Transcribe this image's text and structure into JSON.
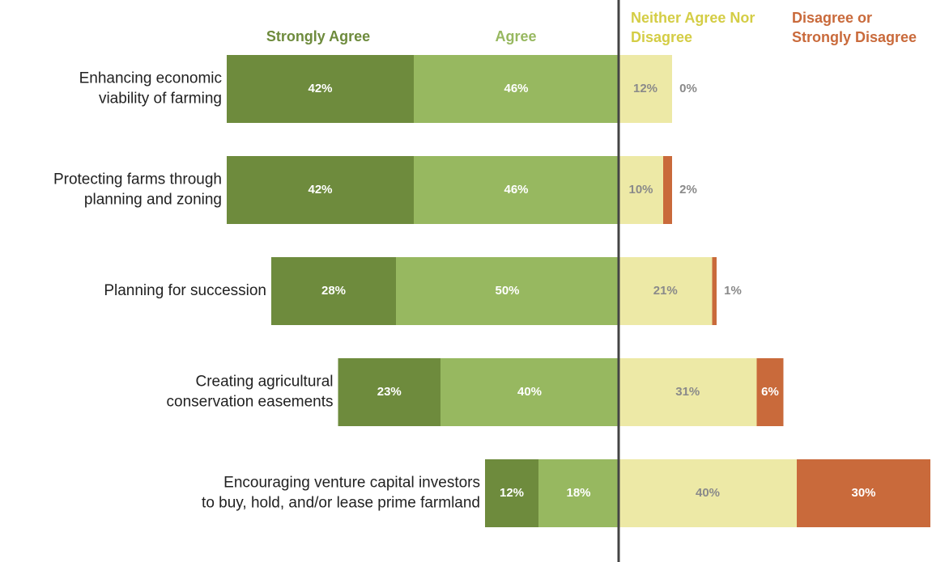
{
  "chart_data": {
    "type": "diverging-bar",
    "categories": [
      [
        "Enhancing economic",
        "viability of farming"
      ],
      [
        "Protecting farms through",
        "planning and zoning"
      ],
      [
        "Planning for succession"
      ],
      [
        "Creating agricultural",
        "conservation easements"
      ],
      [
        "Encouraging venture capital investors",
        "to buy, hold, and/or lease prime farmland"
      ]
    ],
    "series": [
      {
        "name": "Strongly Agree",
        "color": "#6e8b3d",
        "side": "left",
        "values": [
          42,
          42,
          28,
          23,
          12
        ],
        "value_labels": [
          "42%",
          "42%",
          "28%",
          "23%",
          "12%"
        ]
      },
      {
        "name": "Agree",
        "color": "#97b860",
        "side": "left",
        "values": [
          46,
          46,
          50,
          40,
          18
        ],
        "value_labels": [
          "46%",
          "46%",
          "50%",
          "40%",
          "18%"
        ]
      },
      {
        "name": "Neither Agree Nor Disagree",
        "color": "#ede9a6",
        "side": "right",
        "values": [
          12,
          10,
          21,
          31,
          40
        ],
        "value_labels": [
          "12%",
          "10%",
          "21%",
          "31%",
          "40%"
        ]
      },
      {
        "name": "Disagree or Strongly Disagree",
        "color": "#c96a3b",
        "side": "right",
        "values": [
          0,
          2,
          1,
          6,
          30
        ],
        "value_labels": [
          "0%",
          "2%",
          "1%",
          "6%",
          "30%"
        ]
      }
    ]
  }
}
